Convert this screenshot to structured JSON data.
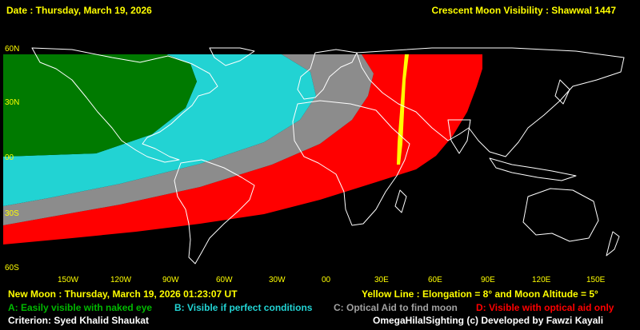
{
  "header": {
    "date": "Date : Thursday, March 19, 2026",
    "title": "Crescent Moon Visibility : Shawwal  1447"
  },
  "lat_labels": [
    "60N",
    "30N",
    "00",
    "30S",
    "60S"
  ],
  "lon_labels": [
    "150W",
    "120W",
    "90W",
    "60W",
    "30W",
    "00",
    "30E",
    "60E",
    "90E",
    "120E",
    "150E"
  ],
  "footer": {
    "new_moon": "New Moon : Thursday, March 19, 2026  01:23:07  UT",
    "yellow_line": "Yellow Line : Elongation = 8°  and Moon Altitude = 5°",
    "legend_a": "A: Easily visible with naked eye",
    "legend_b": "B: Visible if perfect conditions",
    "legend_c": "C: Optical Aid to find moon",
    "legend_d": "D: Visible with optical aid only",
    "criterion": "Criterion: Syed Khalid Shaukat",
    "credit": "OmegaHilalSighting  (c)  Developed by Fawzi Kayali"
  },
  "colors": {
    "zone_a": "#007a00",
    "zone_b": "#22d3d3",
    "zone_c": "#8c8c8c",
    "zone_d": "#ff0000",
    "yellow_line": "#ffff00",
    "label": "#ffff00",
    "coast": "#ffffff"
  }
}
